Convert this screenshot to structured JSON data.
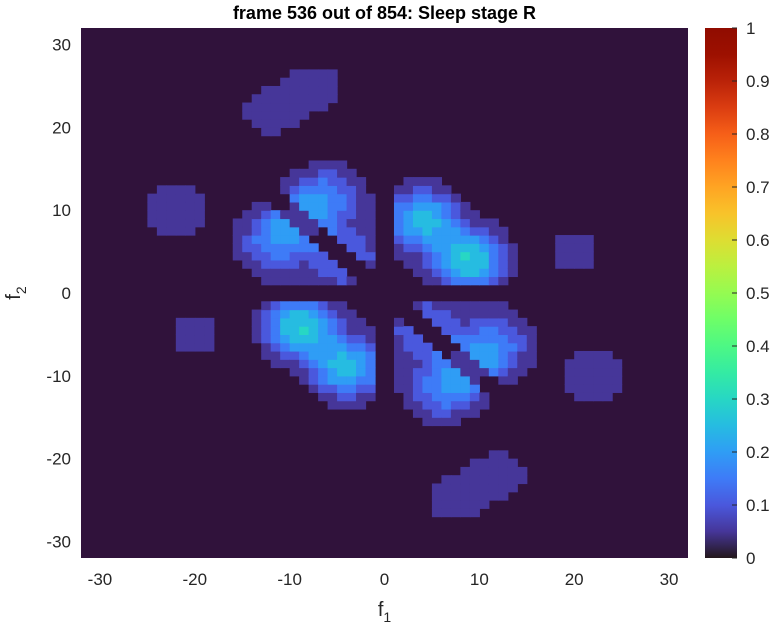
{
  "chart_data": {
    "type": "heatmap",
    "title": "frame 536 out of 854: Sleep stage R",
    "xlabel": {
      "base": "f",
      "sub": "1"
    },
    "ylabel": {
      "base": "f",
      "sub": "2"
    },
    "xlim": [
      -32,
      32
    ],
    "ylim": [
      -32,
      32
    ],
    "x_ticks": [
      "-30",
      "-20",
      "-10",
      "0",
      "10",
      "20",
      "30"
    ],
    "x_tick_values": [
      -30,
      -20,
      -10,
      0,
      10,
      20,
      30
    ],
    "y_ticks": [
      "-30",
      "-20",
      "-10",
      "0",
      "10",
      "20",
      "30"
    ],
    "y_tick_values": [
      -30,
      -20,
      -10,
      0,
      10,
      20,
      30
    ],
    "colorbar": {
      "colormap": "turbo",
      "range": [
        0,
        1
      ],
      "ticks": [
        "0",
        "0.1",
        "0.2",
        "0.3",
        "0.4",
        "0.5",
        "0.6",
        "0.7",
        "0.8",
        "0.9",
        "1"
      ],
      "tick_values": [
        0,
        0.1,
        0.2,
        0.3,
        0.4,
        0.5,
        0.6,
        0.7,
        0.8,
        0.9,
        1
      ]
    },
    "background_color": "#30123b",
    "contour_levels": [
      0,
      0.05,
      0.1,
      0.15,
      0.2,
      0.25,
      0.3,
      0.35
    ],
    "peaks": [
      {
        "f1": 4,
        "f2": 9,
        "value": 0.27
      },
      {
        "f1": 9,
        "f2": 4,
        "value": 0.3
      },
      {
        "f1": -4,
        "f2": -9,
        "value": 0.27
      },
      {
        "f1": -9,
        "f2": -4,
        "value": 0.3
      },
      {
        "f1": -9,
        "f2": 9,
        "value": 0.16
      },
      {
        "f1": -4,
        "f2": 4,
        "value": 0.15
      },
      {
        "f1": 9,
        "f2": -9,
        "value": 0.16
      },
      {
        "f1": 4,
        "f2": -4,
        "value": 0.15
      },
      {
        "f1": -12,
        "f2": 6,
        "value": 0.15
      },
      {
        "f1": 12,
        "f2": -6,
        "value": 0.15
      },
      {
        "f1": 6,
        "f2": -12,
        "value": 0.15
      },
      {
        "f1": -6,
        "f2": 12,
        "value": 0.15
      },
      {
        "f1": -22,
        "f2": 10,
        "value": 0.1
      },
      {
        "f1": 22,
        "f2": -10,
        "value": 0.1
      },
      {
        "f1": -12,
        "f2": 22,
        "value": 0.08
      },
      {
        "f1": 12,
        "f2": -22,
        "value": 0.08
      },
      {
        "f1": -20,
        "f2": -5,
        "value": 0.07
      },
      {
        "f1": 20,
        "f2": 5,
        "value": 0.07
      },
      {
        "f1": -7,
        "f2": 25,
        "value": 0.07
      },
      {
        "f1": 7,
        "f2": -25,
        "value": 0.07
      }
    ]
  }
}
